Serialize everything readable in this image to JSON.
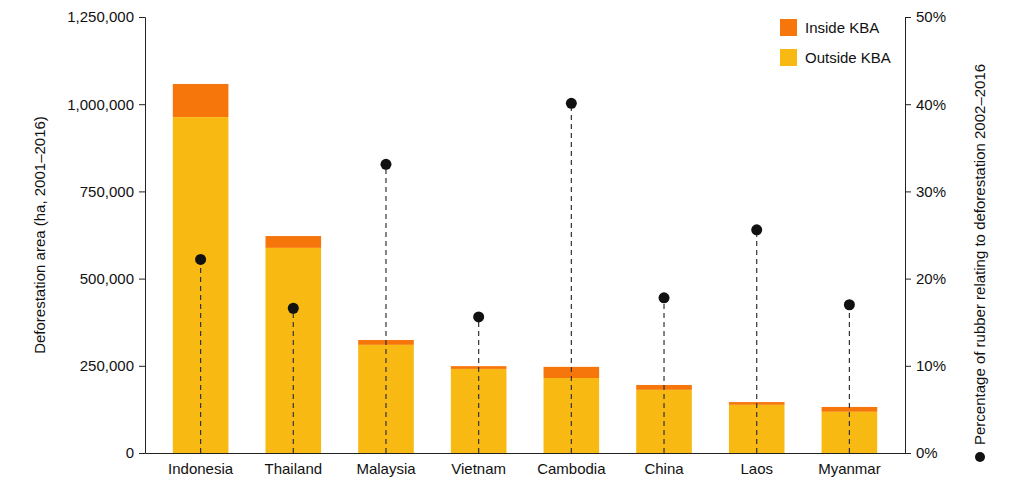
{
  "chart_data": {
    "type": "bar",
    "stacked": true,
    "grid": false,
    "legend": "top-right",
    "ylabel": "Deforestation area (ha, 2001–2016)",
    "categories": [
      "Indonesia",
      "Thailand",
      "Malaysia",
      "Vietnam",
      "Cambodia",
      "China",
      "Laos",
      "Myanmar"
    ],
    "series": [
      {
        "name": "Inside KBA",
        "color": "#f7760c",
        "values": [
          95000,
          34000,
          14000,
          8000,
          32000,
          14000,
          8000,
          14000
        ]
      },
      {
        "name": "Outside KBA",
        "color": "#f7b912",
        "values": [
          963000,
          588000,
          310000,
          241000,
          215000,
          181000,
          138000,
          118000
        ]
      },
      {
        "name": "Percentage of rubber relating to deforestation 2002–2016",
        "type": "scatter",
        "axis": "y2",
        "color": "#111111",
        "marker": "circle",
        "line_style": "dashed",
        "values": [
          22.2,
          16.6,
          33.1,
          15.6,
          40.1,
          17.8,
          25.6,
          17.0
        ]
      }
    ],
    "ylim": [
      0,
      1250000
    ],
    "yticks": [
      0,
      {
        "value": 250000,
        "label": "250,000"
      },
      {
        "value": 500000,
        "label": "500,000"
      },
      {
        "value": 750000,
        "label": "750,000"
      },
      {
        "value": 1000000,
        "label": "1,000,000"
      },
      {
        "value": 1250000,
        "label": "1,250,000"
      }
    ],
    "y2lim": [
      0,
      50
    ],
    "y2ticks": [
      {
        "value": 0,
        "label": "0%"
      },
      {
        "value": 10,
        "label": "10%"
      },
      {
        "value": 20,
        "label": "20%"
      },
      {
        "value": 30,
        "label": "30%"
      },
      {
        "value": 40,
        "label": "40%"
      },
      {
        "value": 50,
        "label": "50%"
      }
    ]
  }
}
